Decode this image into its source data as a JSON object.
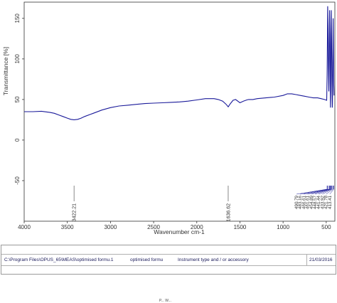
{
  "chart_data": {
    "type": "line",
    "title": "",
    "xlabel": "Wavenumber cm-1",
    "ylabel": "Transmittance [%]",
    "x_reversed": true,
    "xlim": [
      4000,
      400
    ],
    "ylim": [
      -100,
      170
    ],
    "x_ticks": [
      4000,
      3500,
      3000,
      2500,
      2000,
      1500,
      1000,
      500
    ],
    "y_ticks": [
      150,
      100,
      50,
      0,
      -50
    ],
    "grid": false,
    "line_color": "#1a1a9a",
    "series": [
      {
        "x": [
          4000,
          3900,
          3800,
          3700,
          3650,
          3600,
          3550,
          3500,
          3460,
          3422,
          3380,
          3340,
          3300,
          3200,
          3100,
          3000,
          2900,
          2800,
          2700,
          2600,
          2500,
          2400,
          2300,
          2200,
          2100,
          2000,
          1900,
          1800,
          1750,
          1700,
          1660,
          1636,
          1610,
          1580,
          1550,
          1500,
          1460,
          1420,
          1400,
          1350,
          1300,
          1200,
          1100,
          1000,
          950,
          900,
          850,
          800,
          750,
          700,
          650,
          600,
          560,
          520,
          495,
          490,
          486,
          483,
          479,
          475,
          470,
          466,
          461,
          457,
          454,
          451,
          448,
          445,
          441,
          437,
          433,
          430,
          428,
          425,
          420,
          417,
          413,
          410
        ],
        "y": [
          35,
          35,
          35.5,
          34,
          33,
          31,
          29,
          27,
          25.5,
          25,
          25.5,
          27,
          29,
          33,
          37,
          40,
          42,
          43,
          44,
          45,
          45.5,
          46,
          46.5,
          47,
          48,
          49.5,
          51,
          51,
          50,
          48,
          44,
          41,
          45,
          49,
          50,
          46,
          48,
          49.5,
          50,
          50,
          51,
          52,
          53,
          55,
          57,
          57,
          56,
          55,
          54,
          53,
          52,
          52,
          51,
          50,
          49,
          80,
          130,
          165,
          140,
          90,
          60,
          110,
          160,
          130,
          70,
          40,
          70,
          120,
          160,
          110,
          60,
          40,
          45,
          90,
          150,
          120,
          70,
          55
        ]
      }
    ],
    "peak_labels": [
      {
        "x": 3422,
        "label": "3422.21"
      },
      {
        "x": 1636,
        "label": "1636.62"
      }
    ],
    "cluster_labels": [
      "490.79",
      "483.16",
      "466.61",
      "461.61",
      "454.89",
      "448.57",
      "441.44",
      "433.92",
      "421.78",
      "413.41"
    ],
    "cluster_x": [
      490,
      483,
      466,
      461,
      454,
      448,
      441,
      433,
      421,
      413
    ]
  },
  "footer": {
    "path": "C:\\Program Files\\OPUS_65\\MEAS\\optimised formu.1",
    "sample_name": "optimised formu",
    "instrument": "Instrument type and / or accessory",
    "date": "21/03/2016",
    "bottom_text": "P... W..."
  }
}
